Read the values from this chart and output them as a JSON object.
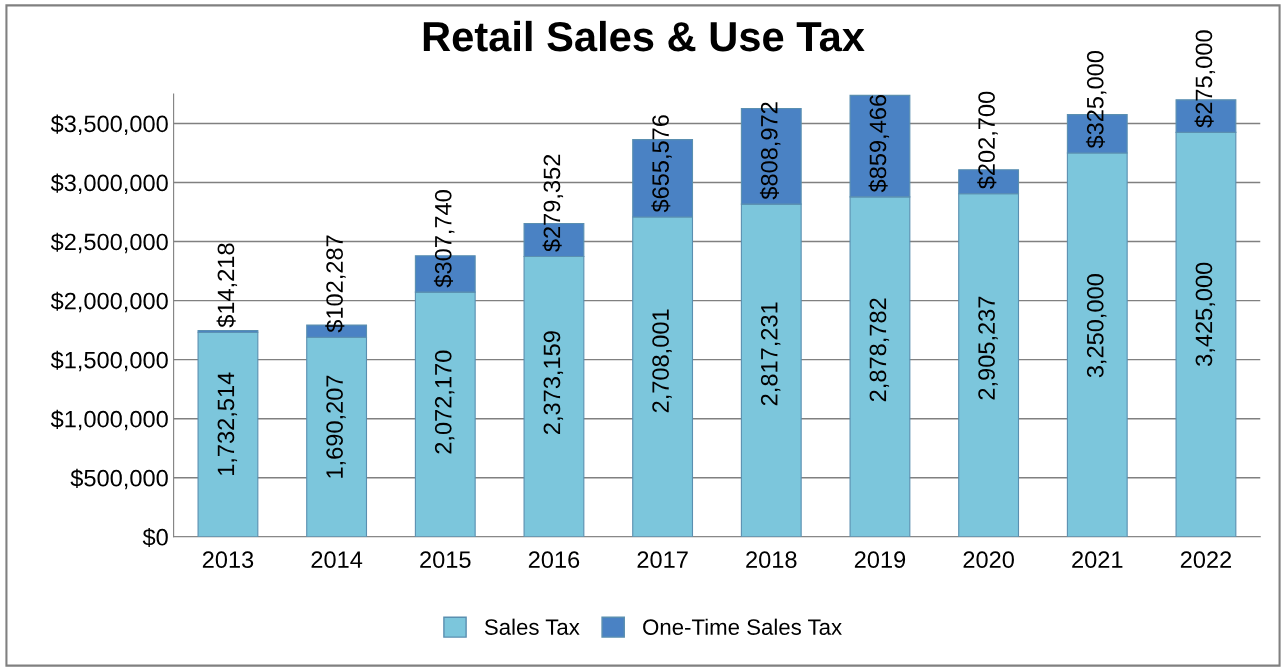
{
  "chart_data": {
    "type": "bar",
    "title": "Retail Sales & Use Tax",
    "stacked": true,
    "categories": [
      "2013",
      "2014",
      "2015",
      "2016",
      "2017",
      "2018",
      "2019",
      "2020",
      "2021",
      "2022"
    ],
    "series": [
      {
        "name": "Sales Tax",
        "color": "#7cc6dc",
        "values": [
          1732514,
          1690207,
          2072170,
          2373159,
          2708001,
          2817231,
          2878782,
          2905237,
          3250000,
          3425000
        ],
        "value_labels": [
          "1,732,514",
          "1,690,207",
          "2,072,170",
          "2,373,159",
          "2,708,001",
          "2,817,231",
          "2,878,782",
          "2,905,237",
          "3,250,000",
          "3,425,000"
        ]
      },
      {
        "name": "One-Time Sales Tax",
        "color": "#4a82c4",
        "values": [
          14218,
          102287,
          307740,
          279352,
          655576,
          808972,
          859466,
          202700,
          325000,
          275000
        ],
        "value_labels": [
          "$14,218",
          "$102,287",
          "$307,740",
          "$279,352",
          "$655,576",
          "$808,972",
          "$859,466",
          "$202,700",
          "$325,000",
          "$275,000"
        ]
      }
    ],
    "ylim": [
      0,
      3750000
    ],
    "yticks": [
      {
        "value": 0,
        "label": "$0"
      },
      {
        "value": 500000,
        "label": "$500,000"
      },
      {
        "value": 1000000,
        "label": "$1,000,000"
      },
      {
        "value": 1500000,
        "label": "$1,500,000"
      },
      {
        "value": 2000000,
        "label": "$2,000,000"
      },
      {
        "value": 2500000,
        "label": "$2,500,000"
      },
      {
        "value": 3000000,
        "label": "$3,000,000"
      },
      {
        "value": 3500000,
        "label": "$3,500,000"
      }
    ],
    "grid": "y",
    "legend": "bottom"
  }
}
